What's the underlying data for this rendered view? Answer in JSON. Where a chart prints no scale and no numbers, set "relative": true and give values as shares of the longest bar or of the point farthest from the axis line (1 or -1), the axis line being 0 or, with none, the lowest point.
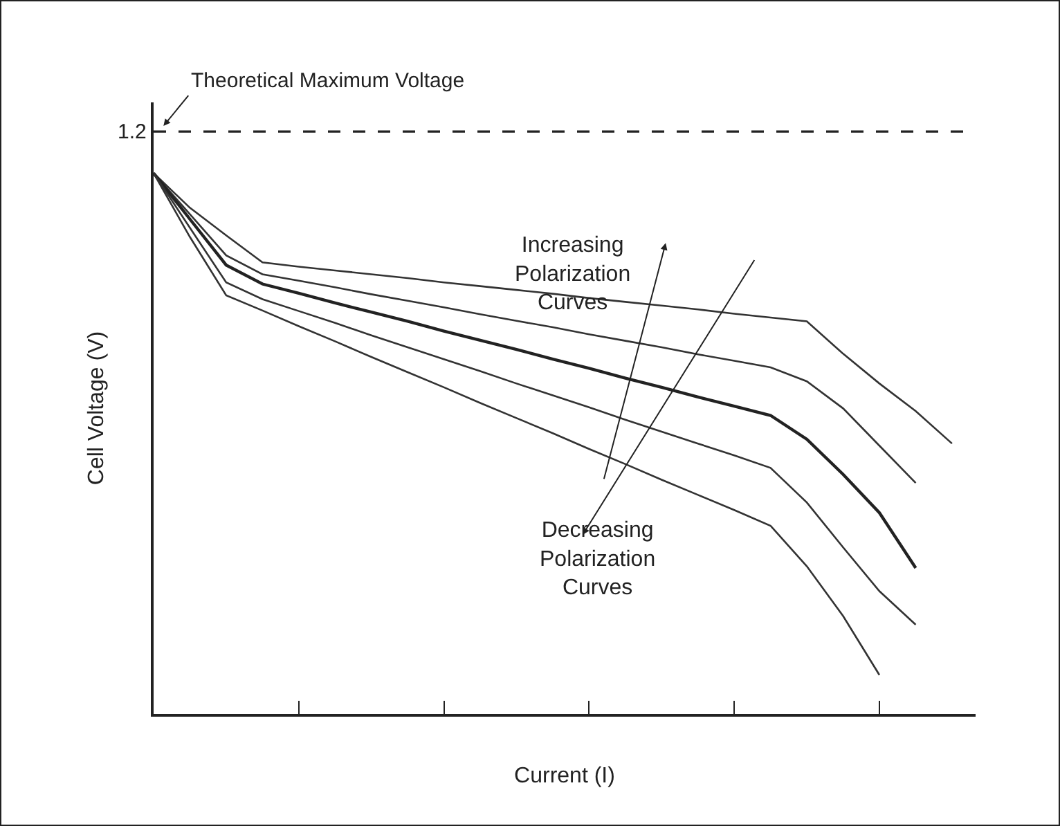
{
  "chart_data": {
    "type": "line",
    "relative": true,
    "xlabel": "Current (I)",
    "ylabel": "Cell Voltage (V)",
    "categories": [
      null,
      null,
      null,
      null,
      null,
      null,
      null,
      null,
      null,
      null,
      null,
      null,
      null,
      null,
      null,
      null,
      null,
      null,
      null,
      null,
      null,
      null,
      null
    ],
    "series": [
      {
        "color": "#333333",
        "values": [
          1.0,
          0.936,
          0.885,
          0.835,
          0.827,
          0.82,
          0.813,
          0.806,
          0.798,
          0.791,
          0.784,
          0.777,
          0.769,
          0.762,
          0.755,
          0.748,
          0.74,
          0.733,
          0.726,
          0.666,
          0.611,
          0.56,
          0.5
        ]
      },
      {
        "color": "#333333",
        "values": [
          1.0,
          0.924,
          0.848,
          0.813,
          0.801,
          0.789,
          0.776,
          0.764,
          0.752,
          0.739,
          0.727,
          0.715,
          0.702,
          0.69,
          0.678,
          0.665,
          0.653,
          0.641,
          0.615,
          0.565,
          0.496,
          0.427,
          null
        ]
      },
      {
        "color": "#222222",
        "values": [
          1.0,
          0.915,
          0.83,
          0.795,
          0.778,
          0.76,
          0.743,
          0.726,
          0.708,
          0.691,
          0.674,
          0.656,
          0.639,
          0.621,
          0.604,
          0.586,
          0.569,
          0.552,
          0.508,
          0.443,
          0.372,
          0.27,
          null
        ]
      },
      {
        "color": "#333333",
        "values": [
          1.0,
          0.899,
          0.798,
          0.767,
          0.745,
          0.723,
          0.7,
          0.678,
          0.656,
          0.634,
          0.611,
          0.589,
          0.567,
          0.544,
          0.522,
          0.5,
          0.478,
          0.455,
          0.391,
          0.308,
          0.227,
          0.165,
          null
        ]
      },
      {
        "color": "#333333",
        "values": [
          1.0,
          0.882,
          0.774,
          0.746,
          0.717,
          0.689,
          0.66,
          0.632,
          0.604,
          0.575,
          0.547,
          0.519,
          0.49,
          0.462,
          0.433,
          0.405,
          0.377,
          0.348,
          0.273,
          0.181,
          0.072,
          null,
          null
        ]
      }
    ],
    "ref_lines": [
      {
        "axis": "y",
        "value": 1.077,
        "label": "Theoretical Maximum Voltage",
        "line_style": "dashed",
        "color": "#222222"
      }
    ],
    "annotations": [
      "1.2",
      "Increasing\nPolarization\nCurves",
      "Decreasing\nPolarization\nCurves"
    ],
    "marker": "none",
    "line_style": "solid"
  }
}
